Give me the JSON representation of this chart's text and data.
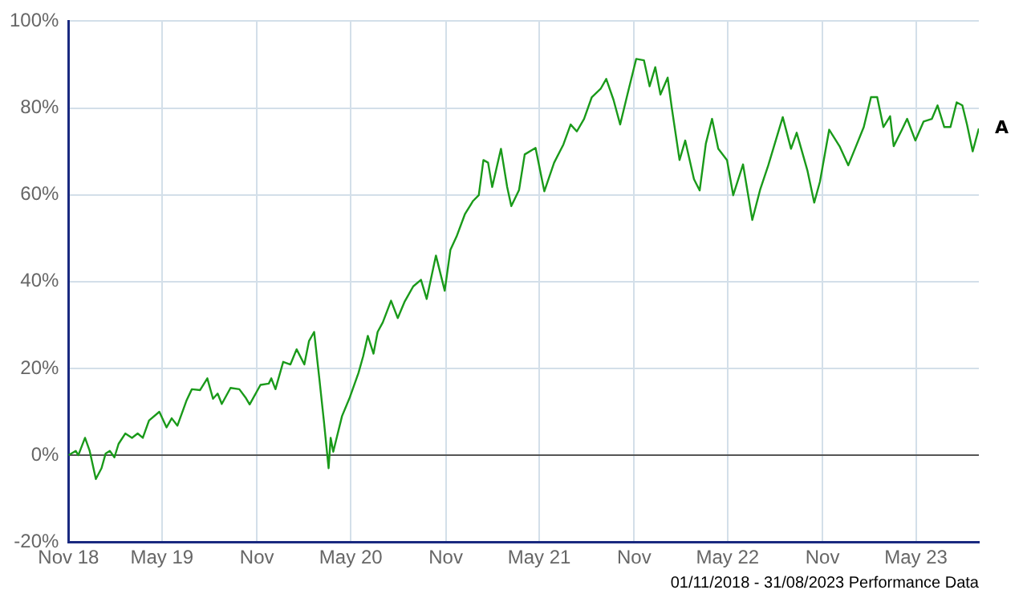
{
  "chart_data": {
    "type": "line",
    "annotations": [
      "01/11/2018 - 31/08/2023 Performance Data"
    ],
    "xlim": [
      "2018-11-01",
      "2023-08-31"
    ],
    "xticks": [
      {
        "value": "2018-11-01",
        "label": "Nov 18"
      },
      {
        "value": "2019-05-01",
        "label": "May 19"
      },
      {
        "value": "2019-11-01",
        "label": "Nov"
      },
      {
        "value": "2020-05-01",
        "label": "May 20"
      },
      {
        "value": "2020-11-01",
        "label": "Nov"
      },
      {
        "value": "2021-05-01",
        "label": "May 21"
      },
      {
        "value": "2021-11-01",
        "label": "Nov"
      },
      {
        "value": "2022-05-01",
        "label": "May 22"
      },
      {
        "value": "2022-11-01",
        "label": "Nov"
      },
      {
        "value": "2023-05-01",
        "label": "May 23"
      }
    ],
    "ylim": [
      -20,
      100
    ],
    "yticks": [
      {
        "value": -20,
        "label": "-20%"
      },
      {
        "value": 0,
        "label": "0%"
      },
      {
        "value": 20,
        "label": "20%"
      },
      {
        "value": 40,
        "label": "40%"
      },
      {
        "value": 60,
        "label": "60%"
      },
      {
        "value": 80,
        "label": "80%"
      },
      {
        "value": 100,
        "label": "100%"
      }
    ],
    "grid": true,
    "legend": false,
    "marker": "none",
    "line_style": "solid",
    "series": [
      {
        "name": "A",
        "color": "#1a9a1a",
        "x": [
          "2018-11-01",
          "2018-11-15",
          "2018-11-20",
          "2018-12-03",
          "2018-12-12",
          "2018-12-24",
          "2019-01-04",
          "2019-01-12",
          "2019-01-20",
          "2019-01-29",
          "2019-02-06",
          "2019-02-19",
          "2019-03-04",
          "2019-03-15",
          "2019-03-25",
          "2019-04-06",
          "2019-04-26",
          "2019-05-10",
          "2019-05-20",
          "2019-05-31",
          "2019-06-18",
          "2019-06-28",
          "2019-07-14",
          "2019-07-28",
          "2019-08-08",
          "2019-08-17",
          "2019-08-25",
          "2019-09-11",
          "2019-09-28",
          "2019-10-10",
          "2019-10-18",
          "2019-11-08",
          "2019-11-24",
          "2019-11-29",
          "2019-12-07",
          "2019-12-22",
          "2020-01-05",
          "2020-01-17",
          "2020-02-01",
          "2020-02-10",
          "2020-02-20",
          "2020-03-01",
          "2020-03-10",
          "2020-03-19",
          "2020-03-23",
          "2020-03-28",
          "2020-04-14",
          "2020-04-29",
          "2020-05-16",
          "2020-05-25",
          "2020-06-03",
          "2020-06-14",
          "2020-06-22",
          "2020-07-02",
          "2020-07-18",
          "2020-07-31",
          "2020-08-13",
          "2020-08-30",
          "2020-09-14",
          "2020-09-25",
          "2020-10-13",
          "2020-10-30",
          "2020-11-10",
          "2020-11-22",
          "2020-12-08",
          "2020-12-24",
          "2021-01-04",
          "2021-01-13",
          "2021-01-22",
          "2021-01-30",
          "2021-02-16",
          "2021-02-28",
          "2021-03-08",
          "2021-03-23",
          "2021-04-03",
          "2021-04-24",
          "2021-05-11",
          "2021-05-30",
          "2021-06-17",
          "2021-07-01",
          "2021-07-13",
          "2021-07-27",
          "2021-08-11",
          "2021-08-28",
          "2021-09-08",
          "2021-09-22",
          "2021-10-05",
          "2021-10-19",
          "2021-11-05",
          "2021-11-20",
          "2021-12-01",
          "2021-12-12",
          "2021-12-22",
          "2022-01-05",
          "2022-01-13",
          "2022-01-28",
          "2022-02-08",
          "2022-02-25",
          "2022-03-08",
          "2022-03-20",
          "2022-04-01",
          "2022-04-13",
          "2022-04-30",
          "2022-05-12",
          "2022-05-31",
          "2022-06-18",
          "2022-07-03",
          "2022-07-19",
          "2022-08-16",
          "2022-09-01",
          "2022-09-12",
          "2022-10-03",
          "2022-10-16",
          "2022-10-27",
          "2022-11-14",
          "2022-12-04",
          "2022-12-21",
          "2023-01-05",
          "2023-01-20",
          "2023-02-03",
          "2023-02-15",
          "2023-02-27",
          "2023-03-12",
          "2023-03-19",
          "2023-04-04",
          "2023-04-14",
          "2023-04-30",
          "2023-05-16",
          "2023-06-01",
          "2023-06-12",
          "2023-06-25",
          "2023-07-07",
          "2023-07-19",
          "2023-07-30",
          "2023-08-08",
          "2023-08-19",
          "2023-08-31"
        ],
        "values": [
          0,
          1,
          0,
          4,
          1,
          -5.5,
          -3,
          0.4,
          1,
          -0.5,
          2.6,
          5,
          4,
          5,
          4,
          8,
          10,
          6.4,
          8.5,
          6.8,
          12.7,
          15.2,
          15,
          17.7,
          13,
          14.2,
          11.8,
          15.5,
          15.2,
          13.3,
          11.7,
          16.2,
          16.5,
          17.7,
          15.2,
          21.5,
          20.9,
          24.4,
          20.9,
          26.3,
          28.4,
          17.7,
          7.7,
          -3,
          4,
          0.8,
          9,
          13.3,
          19,
          22.8,
          27.5,
          23.4,
          28.4,
          30.6,
          35.6,
          31.6,
          35.3,
          38.9,
          40.4,
          36,
          46,
          37.9,
          47.3,
          50.4,
          55.5,
          58.6,
          59.9,
          68,
          67.4,
          61.8,
          70.6,
          61.8,
          57.4,
          61.1,
          69.3,
          70.8,
          60.8,
          67.4,
          71.6,
          76.2,
          74.6,
          77.5,
          82.5,
          84.4,
          86.7,
          81.9,
          76.2,
          83.1,
          91.3,
          91,
          85,
          89.4,
          83.1,
          87,
          80,
          68,
          72.5,
          63.6,
          61,
          71.8,
          77.5,
          70.6,
          68,
          59.9,
          67,
          54.2,
          61.1,
          66.8,
          77.9,
          70.6,
          74.3,
          65.5,
          58.2,
          63,
          75,
          71.2,
          66.8,
          71.2,
          75.6,
          82.5,
          82.5,
          75.6,
          78.1,
          71.2,
          75,
          77.5,
          72.5,
          76.9,
          77.5,
          80.6,
          75.6,
          75.6,
          81.3,
          80.6,
          76.2,
          70,
          75.3
        ]
      }
    ]
  }
}
